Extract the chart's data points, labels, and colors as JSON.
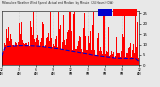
{
  "n_points": 1440,
  "ylim": [
    0,
    26
  ],
  "yticks": [
    0,
    5,
    10,
    15,
    20,
    25
  ],
  "background_color": "#e8e8e8",
  "bar_color": "#ff0000",
  "median_color": "#0000cc",
  "median_linewidth": 0.8,
  "legend_actual_color": "#ff0000",
  "legend_median_color": "#0000cc",
  "vline_color": "#bbbbbb",
  "vline_positions": [
    180,
    360,
    540,
    720,
    900,
    1080,
    1260
  ],
  "seed": 42
}
